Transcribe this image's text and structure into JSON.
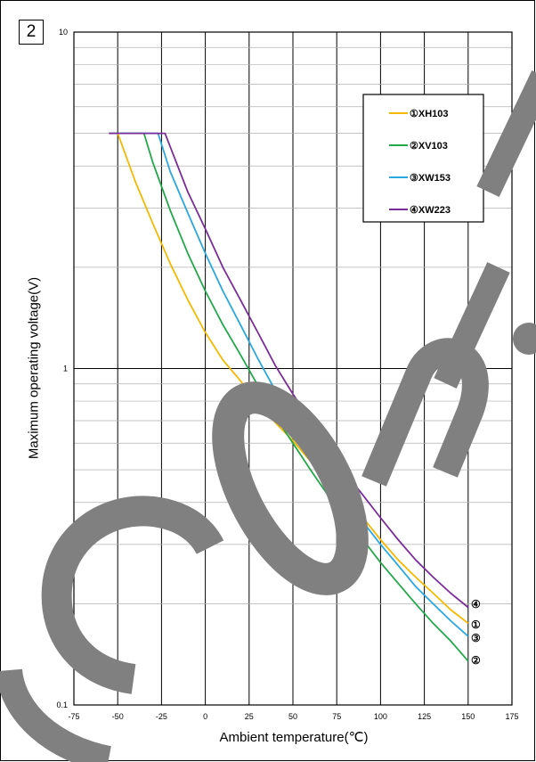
{
  "panel_label": "2",
  "chart_data": {
    "type": "line",
    "title": "",
    "xlabel": "Ambient temperature(℃)",
    "ylabel": "Maximum operating voltage(V)",
    "xlim": [
      -75,
      175
    ],
    "ylim": [
      0.1,
      10
    ],
    "yscale": "log",
    "grid": true,
    "xticks": [
      "-75",
      "-50",
      "-25",
      "0",
      "25",
      "50",
      "75",
      "100",
      "125",
      "150",
      "175"
    ],
    "yticks": [
      "0.1",
      "1",
      "10"
    ],
    "legend_position": "top-right",
    "series": [
      {
        "name": "①XH103",
        "end_marker": "①",
        "color": "#f5b800",
        "x": [
          -55,
          -50,
          -40,
          -30,
          -20,
          -10,
          0,
          10,
          20,
          30,
          40,
          50,
          60,
          70,
          80,
          90,
          100,
          110,
          120,
          130,
          140,
          150
        ],
        "y": [
          5,
          5,
          3.6,
          2.7,
          2.05,
          1.6,
          1.28,
          1.06,
          0.92,
          0.79,
          0.69,
          0.61,
          0.53,
          0.47,
          0.42,
          0.36,
          0.31,
          0.27,
          0.24,
          0.215,
          0.192,
          0.175
        ]
      },
      {
        "name": "②XV103",
        "end_marker": "②",
        "color": "#22a84a",
        "x": [
          -55,
          -35,
          -30,
          -20,
          -10,
          0,
          10,
          20,
          30,
          40,
          50,
          60,
          70,
          80,
          90,
          100,
          110,
          120,
          130,
          140,
          150
        ],
        "y": [
          5,
          5,
          4.1,
          2.95,
          2.2,
          1.7,
          1.35,
          1.1,
          0.89,
          0.72,
          0.6,
          0.5,
          0.42,
          0.36,
          0.31,
          0.265,
          0.23,
          0.2,
          0.175,
          0.155,
          0.135
        ]
      },
      {
        "name": "③XW153",
        "end_marker": "③",
        "color": "#29a8e0",
        "x": [
          -55,
          -27,
          -20,
          -10,
          0,
          10,
          20,
          30,
          40,
          50,
          60,
          70,
          80,
          90,
          100,
          110,
          120,
          130,
          140,
          150
        ],
        "y": [
          5,
          5,
          3.85,
          2.9,
          2.2,
          1.7,
          1.35,
          1.07,
          0.86,
          0.71,
          0.58,
          0.48,
          0.41,
          0.35,
          0.3,
          0.26,
          0.225,
          0.2,
          0.178,
          0.16
        ]
      },
      {
        "name": "④XW223",
        "end_marker": "④",
        "color": "#7a2d9a",
        "x": [
          -55,
          -23,
          -10,
          0,
          10,
          20,
          30,
          40,
          50,
          60,
          70,
          80,
          90,
          100,
          110,
          120,
          130,
          140,
          150
        ],
        "y": [
          5,
          5,
          3.35,
          2.6,
          2.0,
          1.6,
          1.28,
          1.02,
          0.84,
          0.7,
          0.58,
          0.49,
          0.42,
          0.36,
          0.31,
          0.27,
          0.24,
          0.215,
          0.195
        ]
      }
    ]
  }
}
